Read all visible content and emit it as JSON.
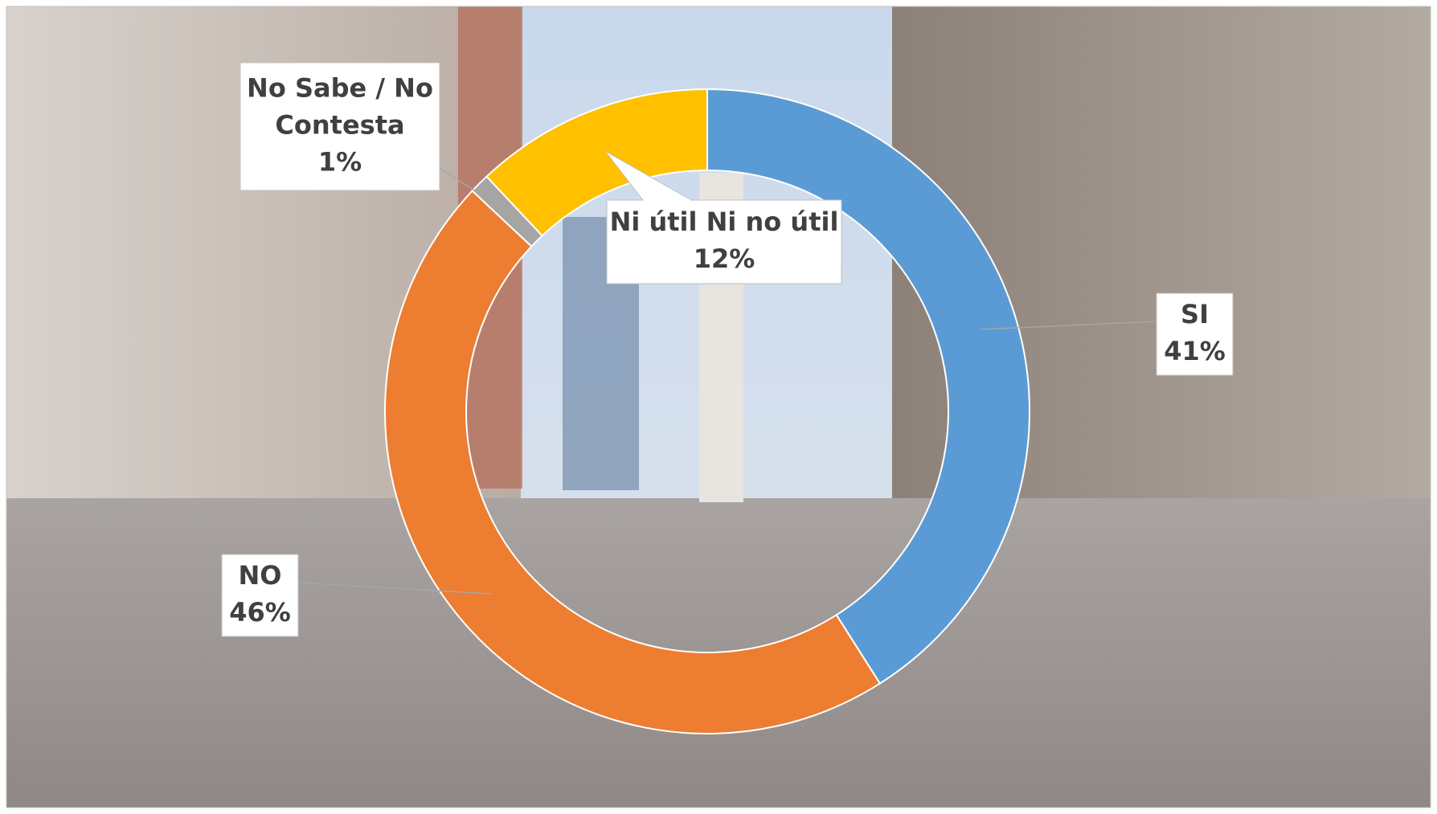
{
  "chart_data": {
    "type": "donut",
    "categories": [
      "SI",
      "NO",
      "No Sabe / No Contesta",
      "Ni útil Ni no útil"
    ],
    "values": [
      41,
      46,
      1,
      12
    ],
    "value_labels": [
      "41%",
      "46%",
      "1%",
      "12%"
    ],
    "colors": [
      "#5b9bd5",
      "#ed7d31",
      "#a5a5a5",
      "#ffc000"
    ]
  }
}
